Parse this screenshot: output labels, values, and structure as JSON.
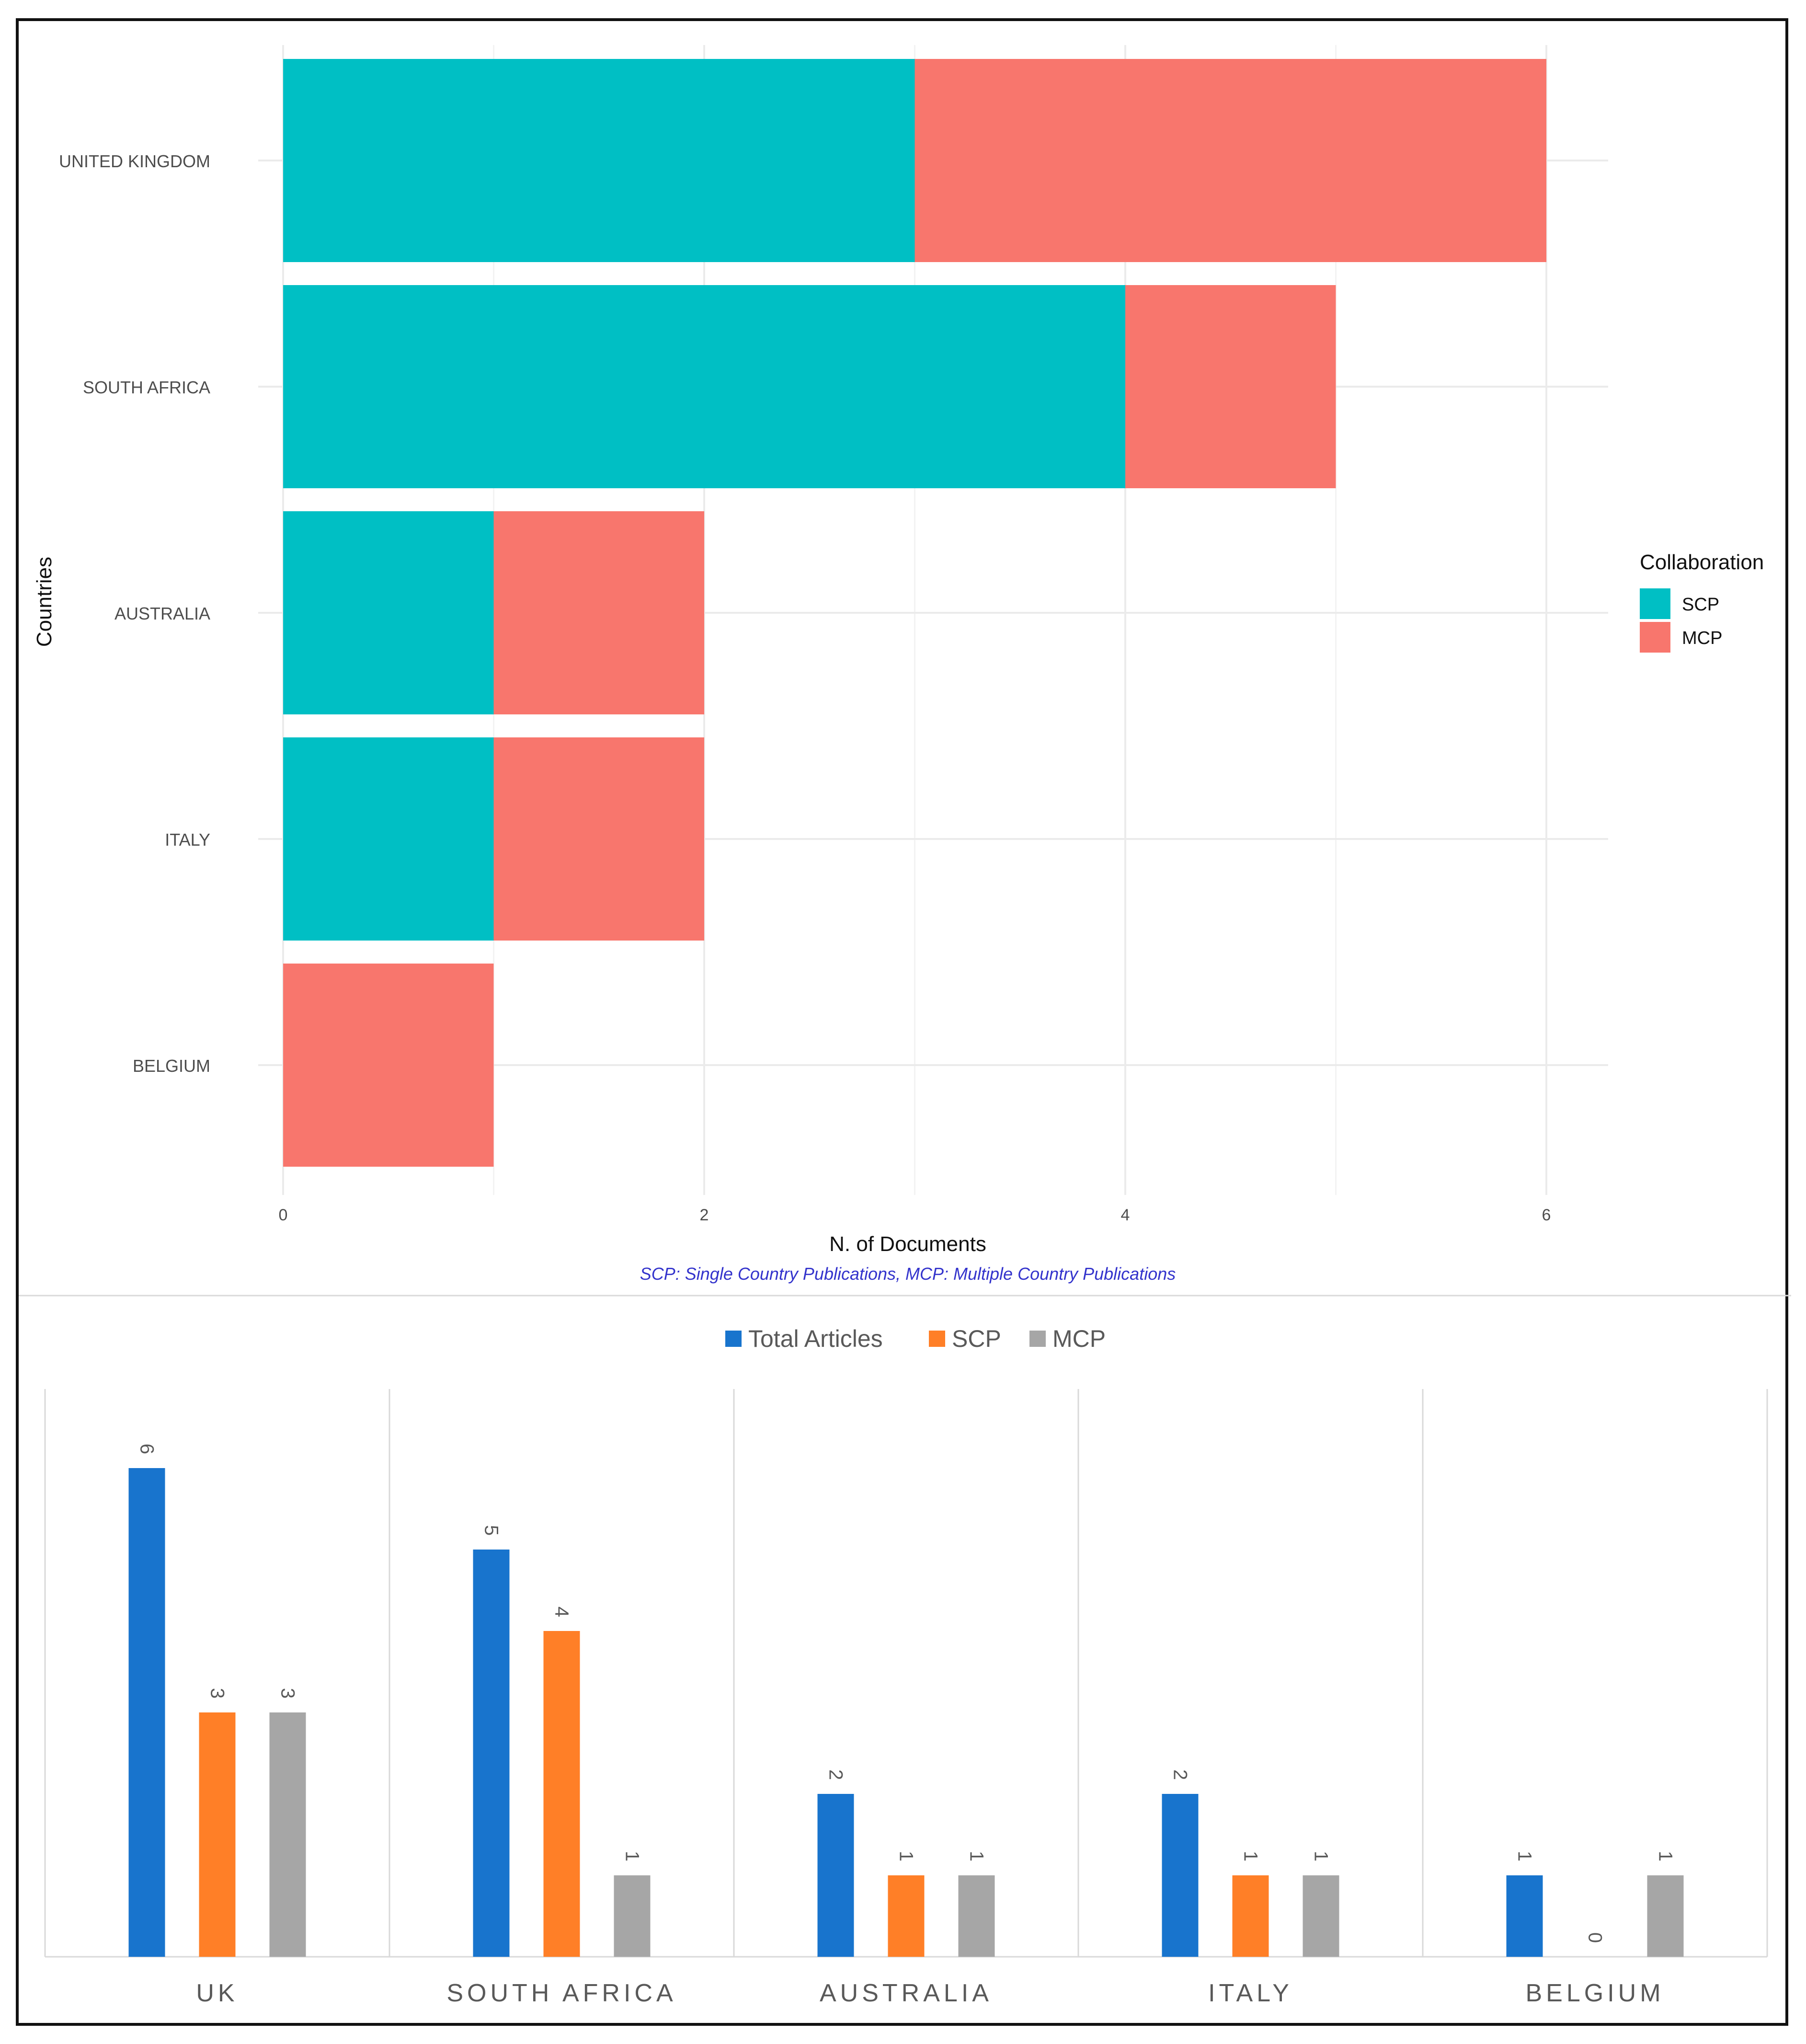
{
  "chart_data": [
    {
      "type": "bar",
      "orientation": "horizontal",
      "stacked": true,
      "categories": [
        "UNITED KINGDOM",
        "SOUTH AFRICA",
        "AUSTRALIA",
        "ITALY",
        "BELGIUM"
      ],
      "series": [
        {
          "name": "SCP",
          "color": "#00BFC4",
          "values": [
            3,
            4,
            1,
            1,
            0
          ]
        },
        {
          "name": "MCP",
          "color": "#F8766D",
          "values": [
            3,
            1,
            1,
            1,
            1
          ]
        }
      ],
      "xlabel": "N. of Documents",
      "ylabel": "Countries",
      "xlim": [
        0,
        6
      ],
      "xticks": [
        "0",
        "2",
        "4",
        "6"
      ],
      "legend_title": "Collaboration",
      "legend_position": "right",
      "caption": "SCP: Single Country Publications, MCP: Multiple Country Publications",
      "caption_color": "#3333CC",
      "grid": true
    },
    {
      "type": "bar",
      "orientation": "vertical",
      "categories": [
        "UK",
        "SOUTH AFRICA",
        "AUSTRALIA",
        "ITALY",
        "BELGIUM"
      ],
      "series": [
        {
          "name": "Total Articles",
          "color": "#1874CD",
          "values": [
            6,
            5,
            2,
            2,
            1
          ],
          "labels": [
            "6",
            "5",
            "2",
            "2",
            "1"
          ]
        },
        {
          "name": "SCP",
          "color": "#FF7F27",
          "values": [
            3,
            4,
            1,
            1,
            0
          ],
          "labels": [
            "3",
            "4",
            "1",
            "1",
            "0"
          ]
        },
        {
          "name": "MCP",
          "color": "#A6A6A6",
          "values": [
            3,
            1,
            1,
            1,
            1
          ],
          "labels": [
            "3",
            "1",
            "1",
            "1",
            "1"
          ]
        }
      ],
      "ylim": [
        0,
        7
      ],
      "legend_position": "top",
      "grid": false
    }
  ]
}
